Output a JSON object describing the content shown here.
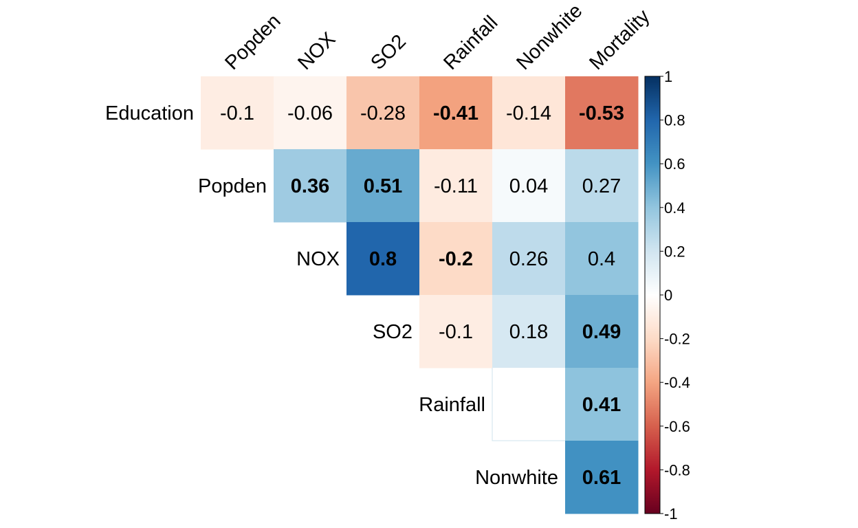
{
  "chart_data": {
    "type": "heatmap",
    "columns": [
      "Popden",
      "NOX",
      "SO2",
      "Rainfall",
      "Nonwhite",
      "Mortality"
    ],
    "rows": [
      {
        "label": "Education",
        "start": 0,
        "values": [
          -0.1,
          -0.06,
          -0.28,
          -0.41,
          -0.14,
          -0.53
        ],
        "labels": [
          "-0.1",
          "-0.06",
          "-0.28",
          "-0.41",
          "-0.14",
          "-0.53"
        ],
        "significant": [
          false,
          false,
          false,
          true,
          false,
          true
        ]
      },
      {
        "label": "Popden",
        "start": 1,
        "values": [
          0.36,
          0.51,
          -0.11,
          0.04,
          0.27
        ],
        "labels": [
          "0.36",
          "0.51",
          "-0.11",
          "0.04",
          "0.27"
        ],
        "significant": [
          true,
          true,
          false,
          false,
          false
        ]
      },
      {
        "label": "NOX",
        "start": 2,
        "values": [
          0.8,
          -0.2,
          0.26,
          0.4
        ],
        "labels": [
          "0.8",
          "-0.2",
          "0.26",
          "0.4"
        ],
        "significant": [
          true,
          true,
          false,
          false
        ]
      },
      {
        "label": "SO2",
        "start": 3,
        "values": [
          -0.1,
          0.18,
          0.49
        ],
        "labels": [
          "-0.1",
          "0.18",
          "0.49"
        ],
        "significant": [
          false,
          false,
          true
        ]
      },
      {
        "label": "Rainfall",
        "start": 4,
        "values": [
          null,
          0.41
        ],
        "labels": [
          "",
          "0.41"
        ],
        "significant": [
          false,
          true
        ]
      },
      {
        "label": "Nonwhite",
        "start": 5,
        "values": [
          0.61
        ],
        "labels": [
          "0.61"
        ],
        "significant": [
          true
        ]
      }
    ],
    "colorbar": {
      "range": [
        -1,
        1
      ],
      "ticks": [
        "1",
        "0.8",
        "0.6",
        "0.4",
        "0.2",
        "0",
        "-0.2",
        "-0.4",
        "-0.6",
        "-0.8",
        "-1"
      ],
      "colors": {
        "neg": "#67001F",
        "mid": "#FFFFFF",
        "pos": "#053061"
      }
    },
    "grid": false,
    "legend": "right"
  }
}
